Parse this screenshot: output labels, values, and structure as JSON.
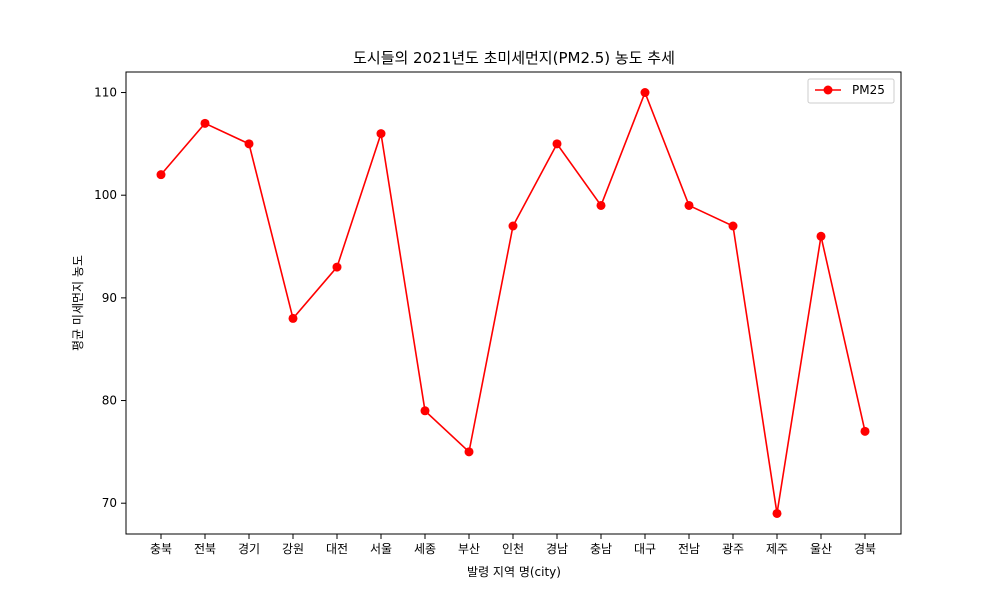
{
  "chart_data": {
    "type": "line",
    "title": "도시들의 2021년도 초미세먼지(PM2.5) 농도 추세",
    "xlabel": "발령 지역 명(city)",
    "ylabel": "평균 미세먼지 농도",
    "categories": [
      "충북",
      "전북",
      "경기",
      "강원",
      "대전",
      "서울",
      "세종",
      "부산",
      "인천",
      "경남",
      "충남",
      "대구",
      "전남",
      "광주",
      "제주",
      "울산",
      "경북"
    ],
    "series": [
      {
        "name": "PM25",
        "values": [
          102,
          107,
          105,
          88,
          93,
          106,
          79,
          75,
          97,
          105,
          99,
          110,
          99,
          97,
          69,
          96,
          77
        ],
        "color": "#ff0000",
        "marker": "circle"
      }
    ],
    "ylim": [
      67,
      112
    ],
    "yticks": [
      70,
      80,
      90,
      100,
      110
    ],
    "grid": false,
    "legend_position": "top-right"
  }
}
